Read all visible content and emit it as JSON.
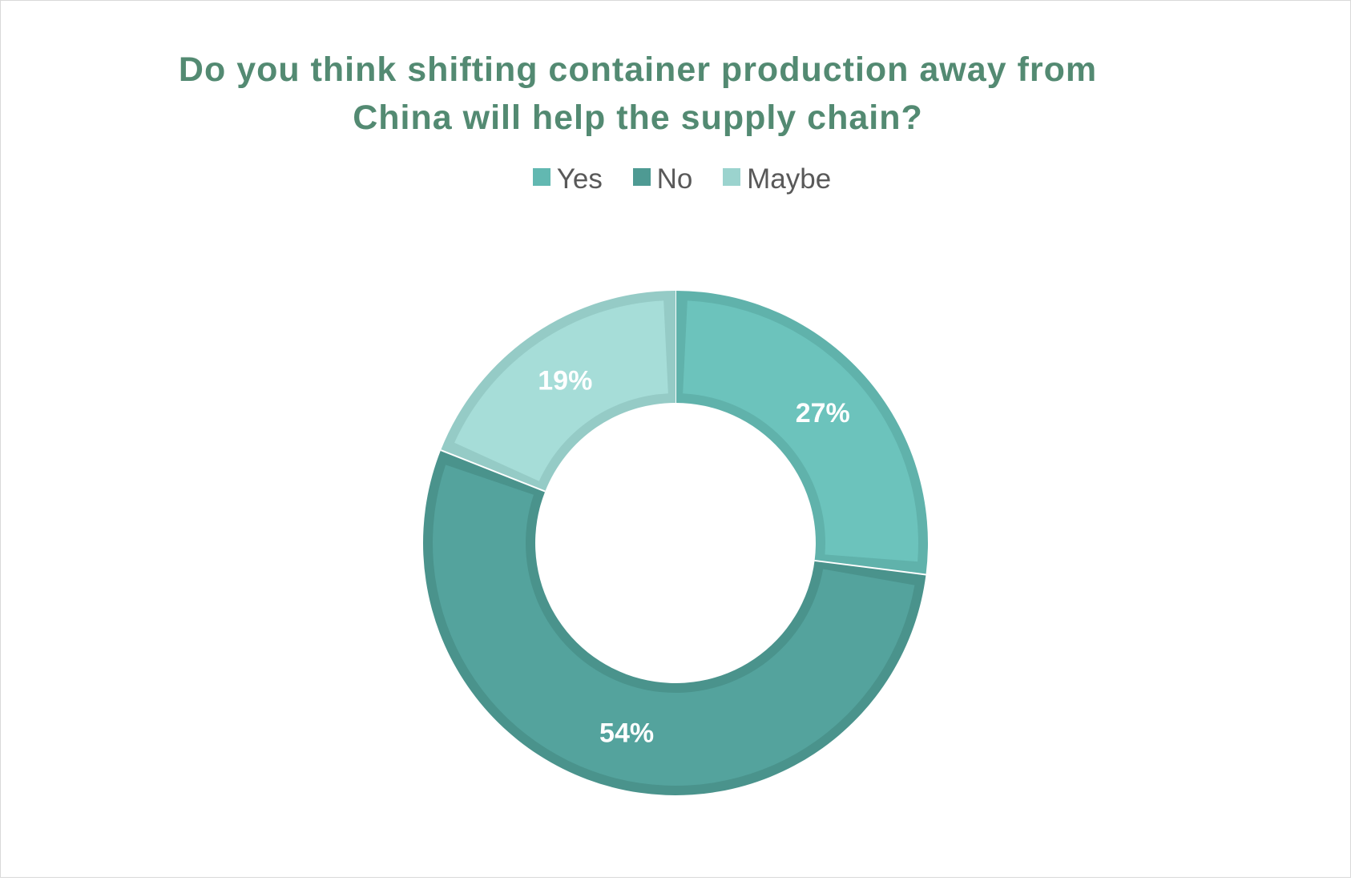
{
  "title_lines": [
    "Do you think shifting container production away from",
    "China will help the supply chain?"
  ],
  "chart_data": {
    "type": "pie",
    "variant": "donut",
    "title": "Do you think shifting container production away from China will help the supply chain?",
    "categories": [
      "Yes",
      "No",
      "Maybe"
    ],
    "values": [
      27,
      54,
      19
    ],
    "value_labels": [
      "27%",
      "54%",
      "19%"
    ],
    "unit": "%",
    "colors": [
      "#6cc3bc",
      "#54a39d",
      "#a6ddd8"
    ],
    "border_colors": [
      "#60b2ab",
      "#4a938c",
      "#95cbc6"
    ],
    "legend": {
      "position": "top",
      "entries": [
        {
          "label": "Yes",
          "color": "#62b8b1"
        },
        {
          "label": "No",
          "color": "#4e9a93"
        },
        {
          "label": "Maybe",
          "color": "#9bd3ce"
        }
      ]
    },
    "start_angle_deg": 0,
    "direction": "clockwise"
  }
}
